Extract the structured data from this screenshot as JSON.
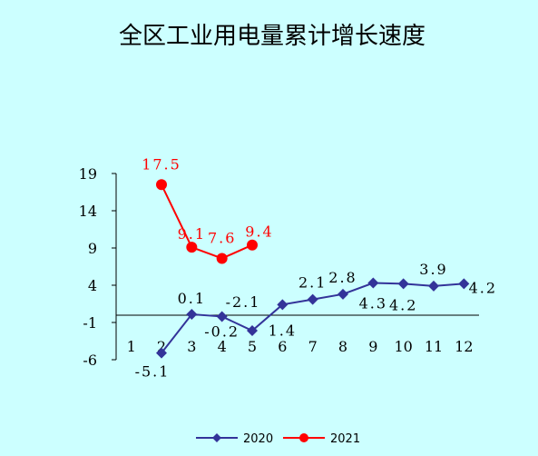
{
  "page": {
    "background": "#ccffff"
  },
  "chart_data": {
    "type": "line",
    "title": "全区工业用电量累计增长速度",
    "xlabel": "",
    "ylabel": "",
    "categories": [
      "1",
      "2",
      "3",
      "4",
      "5",
      "6",
      "7",
      "8",
      "9",
      "10",
      "11",
      "12"
    ],
    "yticks": [
      "19",
      "14",
      "9",
      "4",
      "-1",
      "-6"
    ],
    "ylim": [
      -6,
      19
    ],
    "grid": false,
    "legend_position": "bottom",
    "series": [
      {
        "name": "2020",
        "color": "#333399",
        "marker": "diamond",
        "x": [
          "2",
          "3",
          "4",
          "5",
          "6",
          "7",
          "8",
          "9",
          "10",
          "11",
          "12"
        ],
        "values": [
          -5.1,
          0.1,
          -0.2,
          -2.1,
          1.4,
          2.1,
          2.8,
          4.3,
          4.2,
          3.9,
          4.2
        ],
        "labels": [
          "-5.1",
          "0.1",
          "-0.2",
          "-2.1",
          "1.4",
          "2.1",
          "2.8",
          "4.3",
          "4.2",
          "3.9",
          "4.2"
        ]
      },
      {
        "name": "2021",
        "color": "#ff0000",
        "marker": "circle",
        "x": [
          "2",
          "3",
          "4",
          "5"
        ],
        "values": [
          17.5,
          9.1,
          7.6,
          9.4
        ],
        "labels": [
          "17.5",
          "9.1",
          "7.6",
          "9.4"
        ]
      }
    ]
  }
}
